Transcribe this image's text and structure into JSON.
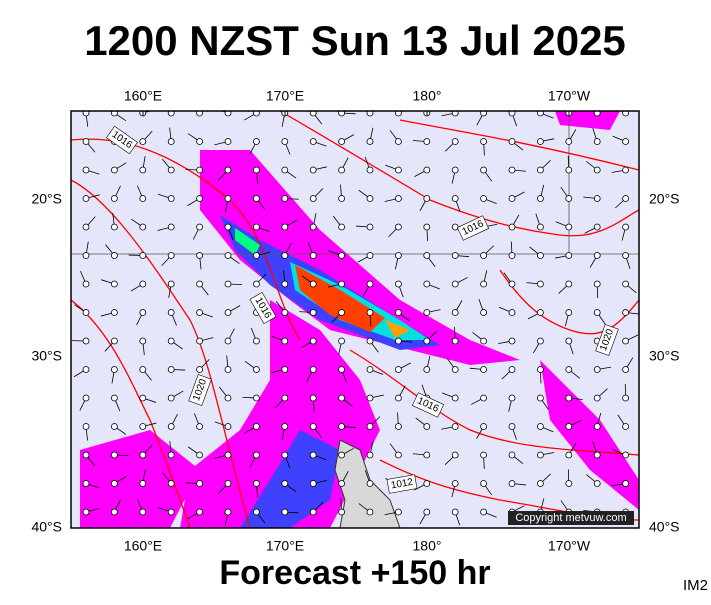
{
  "title": "1200 NZST Sun 13 Jul 2025",
  "top_labels": [
    "160°E",
    "170°E",
    "180°",
    "170°W"
  ],
  "bottom_labels": [
    "160°E",
    "170°E",
    "180°",
    "170°W"
  ],
  "left_labels": [
    "20°S",
    "30°S",
    "40°S"
  ],
  "right_labels": [
    "20°S",
    "30°S",
    "40°S"
  ],
  "isobar_labels": [
    "1016",
    "1016",
    "1016",
    "1016",
    "1020",
    "1020",
    "1012"
  ],
  "copyright": "Copyright metvuw.com",
  "footer": "Forecast +150 hr",
  "image_id": "IM2"
}
